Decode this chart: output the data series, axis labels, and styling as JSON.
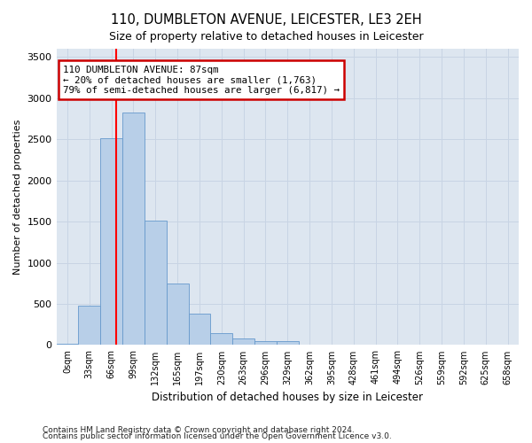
{
  "title": "110, DUMBLETON AVENUE, LEICESTER, LE3 2EH",
  "subtitle": "Size of property relative to detached houses in Leicester",
  "xlabel": "Distribution of detached houses by size in Leicester",
  "ylabel": "Number of detached properties",
  "bar_color": "#b8cfe8",
  "bar_edge_color": "#6699cc",
  "grid_color": "#c8d4e4",
  "background_color": "#dde6f0",
  "bin_labels": [
    "0sqm",
    "33sqm",
    "66sqm",
    "99sqm",
    "132sqm",
    "165sqm",
    "197sqm",
    "230sqm",
    "263sqm",
    "296sqm",
    "329sqm",
    "362sqm",
    "395sqm",
    "428sqm",
    "461sqm",
    "494sqm",
    "526sqm",
    "559sqm",
    "592sqm",
    "625sqm",
    "658sqm"
  ],
  "bar_heights": [
    20,
    480,
    2510,
    2820,
    1510,
    750,
    380,
    140,
    75,
    50,
    50,
    0,
    0,
    0,
    0,
    0,
    0,
    0,
    0,
    0,
    0
  ],
  "red_line_x": 2.73,
  "annotation_text": "110 DUMBLETON AVENUE: 87sqm\n← 20% of detached houses are smaller (1,763)\n79% of semi-detached houses are larger (6,817) →",
  "annotation_box_color": "#ffffff",
  "annotation_box_edge_color": "#cc0000",
  "ylim": [
    0,
    3600
  ],
  "yticks": [
    0,
    500,
    1000,
    1500,
    2000,
    2500,
    3000,
    3500
  ],
  "footnote1": "Contains HM Land Registry data © Crown copyright and database right 2024.",
  "footnote2": "Contains public sector information licensed under the Open Government Licence v3.0."
}
